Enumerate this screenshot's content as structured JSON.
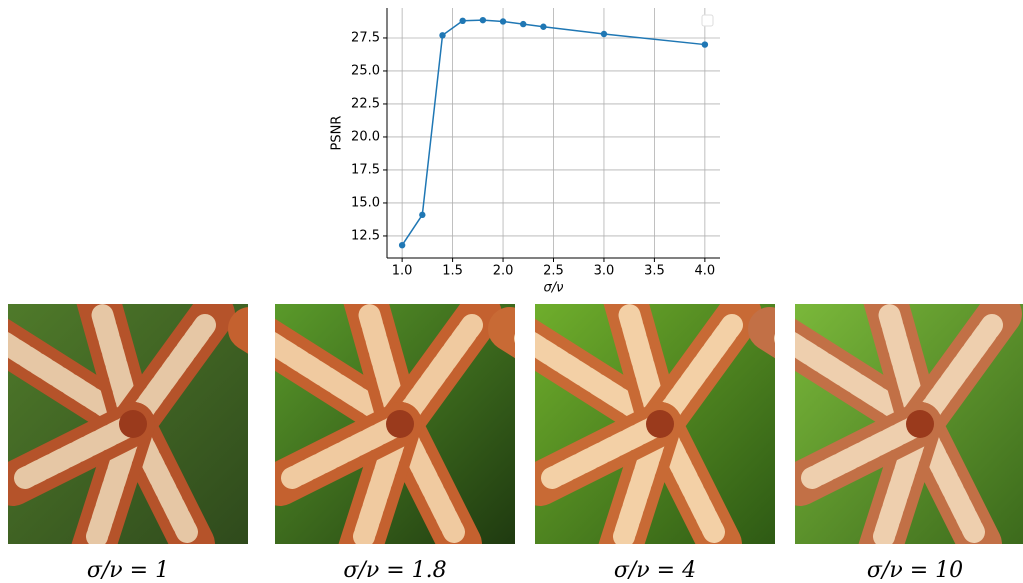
{
  "chart_data": {
    "type": "line",
    "x": [
      1.0,
      1.2,
      1.4,
      1.6,
      1.8,
      2.0,
      2.2,
      2.4,
      3.0,
      4.0
    ],
    "values": [
      11.8,
      14.1,
      27.7,
      28.8,
      28.85,
      28.75,
      28.55,
      28.35,
      27.8,
      27.0
    ],
    "color": "#1f77b4",
    "xlabel": "σ/ν",
    "ylabel": "PSNR",
    "xlim": [
      0.85,
      4.15
    ],
    "ylim": [
      10.83,
      29.77
    ],
    "xticks": [
      {
        "value": 1,
        "label": "1.0"
      },
      1.5,
      {
        "value": 2,
        "label": "2.0"
      },
      2.5,
      {
        "value": 3,
        "label": "3.0"
      },
      3.5,
      {
        "value": 4,
        "label": "4.0"
      }
    ],
    "yticks": [
      12.5,
      {
        "value": 15,
        "label": "15.0"
      },
      17.5,
      {
        "value": 20,
        "label": "20.0"
      },
      22.5,
      {
        "value": 25,
        "label": "25.0"
      },
      27.5
    ],
    "grid": true,
    "legend": "upper right"
  },
  "images": [
    {
      "caption": "σ/ν = 1"
    },
    {
      "caption": "σ/ν = 1.8"
    },
    {
      "caption": "σ/ν = 4"
    },
    {
      "caption": "σ/ν = 10"
    }
  ]
}
